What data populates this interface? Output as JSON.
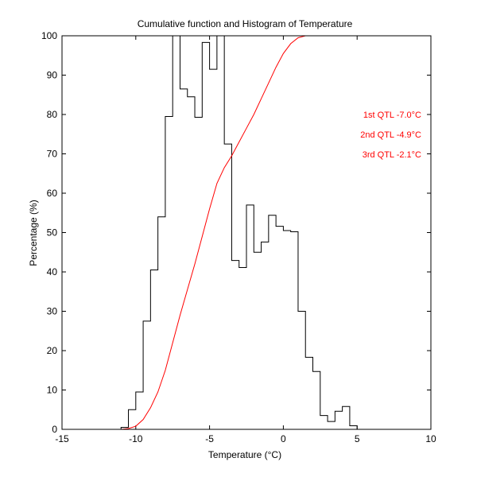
{
  "chart_data": {
    "type": "line",
    "title": "Cumulative function and Histogram of Temperature",
    "xlabel": "Temperature (°C)",
    "ylabel": "Percentage (%)",
    "xlim": [
      -15,
      10
    ],
    "ylim": [
      0,
      100
    ],
    "xticks": [
      -15,
      -10,
      -5,
      0,
      5,
      10
    ],
    "xtick_labels": [
      "-15",
      "-10",
      "-5",
      "0",
      "5",
      "10"
    ],
    "yticks": [
      0,
      10,
      20,
      30,
      40,
      50,
      60,
      70,
      80,
      90,
      100
    ],
    "ytick_labels": [
      "0",
      "10",
      "20",
      "30",
      "40",
      "50",
      "60",
      "70",
      "80",
      "90",
      "100"
    ],
    "grid": false,
    "series": [
      {
        "name": "Histogram",
        "style": "stairs",
        "color": "#000000",
        "bin_edges": [
          -11.0,
          -10.5,
          -10.0,
          -9.5,
          -9.0,
          -8.5,
          -8.0,
          -7.5,
          -7.0,
          -6.5,
          -6.0,
          -5.5,
          -5.0,
          -4.5,
          -4.0,
          -3.5,
          -3.0,
          -2.5,
          -2.0,
          -1.5,
          -1.0,
          -0.5,
          0.0,
          0.5,
          1.0,
          1.5,
          2.0,
          2.5,
          3.0,
          3.5,
          4.0,
          4.5,
          5.0
        ],
        "values": [
          0.5,
          5,
          9.5,
          27.5,
          40.5,
          54,
          79.5,
          100,
          86.5,
          84.5,
          79.3,
          98.3,
          91.5,
          100,
          72.5,
          42.9,
          41.1,
          57,
          45,
          47.6,
          54.4,
          51.6,
          50.5,
          50.2,
          30,
          18.3,
          14.7,
          3.5,
          2,
          4.6,
          5.8,
          0.9
        ]
      },
      {
        "name": "Cumulative function",
        "style": "line",
        "color": "#ff0000",
        "x": [
          -15,
          -11,
          -10.5,
          -10,
          -9.5,
          -9,
          -8.5,
          -8,
          -7.5,
          -7,
          -6.5,
          -6,
          -5.5,
          -5,
          -4.5,
          -4,
          -3.5,
          -3,
          -2.5,
          -2,
          -1.5,
          -1,
          -0.5,
          0,
          0.5,
          1,
          1.5,
          2,
          2.5,
          3,
          3.5,
          4,
          4.5,
          5,
          10
        ],
        "y": [
          0,
          0,
          0.2,
          0.8,
          2.5,
          5.5,
          9.5,
          15,
          22,
          29,
          35.5,
          42,
          49,
          56,
          62.5,
          66.5,
          69.5,
          73,
          76.5,
          80,
          84,
          88,
          92,
          95.5,
          98,
          99.5,
          100,
          100,
          100,
          100,
          100,
          100,
          100,
          100,
          100
        ]
      }
    ],
    "annotations": [
      {
        "text": "1st QTL -7.0°C",
        "color": "#ff0000"
      },
      {
        "text": "2nd QTL -4.9°C",
        "color": "#ff0000"
      },
      {
        "text": "3rd QTL -2.1°C",
        "color": "#ff0000"
      }
    ]
  }
}
